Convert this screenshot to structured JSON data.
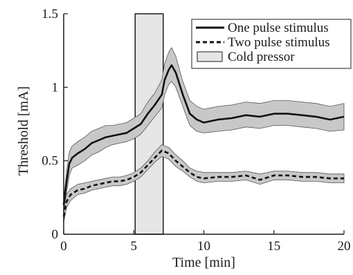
{
  "chart_data": {
    "type": "line",
    "title": "",
    "xlabel": "Time [min]",
    "ylabel": "Threshold [mA]",
    "xlim": [
      0,
      20
    ],
    "ylim": [
      0,
      1.5
    ],
    "x_ticks": [
      0,
      5,
      10,
      15,
      20
    ],
    "x_tick_labels": [
      "0",
      "5",
      "10",
      "15",
      "20"
    ],
    "y_ticks": [
      0,
      0.5,
      1,
      1.5
    ],
    "y_tick_labels": [
      "0",
      "0.5",
      "1",
      "1.5"
    ],
    "grid": false,
    "legend_position": "top-right",
    "shaded_region": {
      "label": "Cold pressor",
      "x_start": 5.1,
      "x_end": 7.1,
      "color": "#e6e6e6"
    },
    "legend": [
      {
        "label": "One pulse stimulus",
        "style": "solid"
      },
      {
        "label": "Two pulse stimulus",
        "style": "dashed"
      },
      {
        "label": "Cold pressor",
        "style": "patch"
      }
    ],
    "band_color": "#c8c8c8",
    "line_color": "#111111",
    "series": [
      {
        "name": "One pulse stimulus",
        "style": "solid",
        "x": [
          0,
          0.2,
          0.4,
          0.6,
          1.0,
          1.5,
          2.0,
          2.5,
          3.0,
          3.5,
          4.0,
          4.5,
          5.0,
          5.5,
          6.0,
          6.5,
          7.0,
          7.2,
          7.5,
          7.7,
          8.0,
          8.5,
          9.0,
          9.5,
          10.0,
          11.0,
          12.0,
          13.0,
          14.0,
          15.0,
          16.0,
          17.0,
          18.0,
          19.0,
          20.0
        ],
        "y": [
          0.2,
          0.35,
          0.48,
          0.52,
          0.55,
          0.58,
          0.62,
          0.64,
          0.66,
          0.67,
          0.68,
          0.69,
          0.72,
          0.75,
          0.82,
          0.88,
          0.95,
          1.05,
          1.12,
          1.15,
          1.1,
          0.95,
          0.82,
          0.78,
          0.76,
          0.78,
          0.79,
          0.81,
          0.8,
          0.82,
          0.82,
          0.81,
          0.8,
          0.78,
          0.8
        ],
        "lower": [
          0.16,
          0.28,
          0.4,
          0.45,
          0.47,
          0.5,
          0.54,
          0.56,
          0.59,
          0.61,
          0.62,
          0.63,
          0.65,
          0.68,
          0.74,
          0.8,
          0.86,
          0.95,
          1.02,
          1.04,
          1.0,
          0.87,
          0.74,
          0.7,
          0.69,
          0.7,
          0.71,
          0.73,
          0.72,
          0.74,
          0.74,
          0.73,
          0.72,
          0.7,
          0.71
        ],
        "upper": [
          0.24,
          0.42,
          0.56,
          0.6,
          0.63,
          0.66,
          0.7,
          0.72,
          0.74,
          0.74,
          0.75,
          0.76,
          0.79,
          0.82,
          0.9,
          0.96,
          1.05,
          1.16,
          1.24,
          1.27,
          1.21,
          1.04,
          0.91,
          0.87,
          0.85,
          0.87,
          0.88,
          0.9,
          0.89,
          0.91,
          0.91,
          0.9,
          0.89,
          0.87,
          0.89
        ]
      },
      {
        "name": "Two pulse stimulus",
        "style": "dashed",
        "x": [
          0,
          0.2,
          0.5,
          1.0,
          1.5,
          2.0,
          2.5,
          3.0,
          3.5,
          4.0,
          4.5,
          5.0,
          5.5,
          6.0,
          6.5,
          7.0,
          7.5,
          8.0,
          8.5,
          9.0,
          9.5,
          10.0,
          11.0,
          12.0,
          13.0,
          14.0,
          15.0,
          16.0,
          17.0,
          18.0,
          19.0,
          20.0
        ],
        "y": [
          0.12,
          0.22,
          0.27,
          0.3,
          0.31,
          0.33,
          0.34,
          0.35,
          0.36,
          0.36,
          0.37,
          0.39,
          0.42,
          0.47,
          0.52,
          0.57,
          0.55,
          0.5,
          0.46,
          0.42,
          0.39,
          0.38,
          0.39,
          0.39,
          0.4,
          0.37,
          0.4,
          0.4,
          0.39,
          0.39,
          0.38,
          0.38
        ],
        "lower": [
          0.08,
          0.18,
          0.23,
          0.27,
          0.28,
          0.3,
          0.31,
          0.32,
          0.33,
          0.33,
          0.34,
          0.36,
          0.39,
          0.44,
          0.49,
          0.53,
          0.51,
          0.46,
          0.43,
          0.39,
          0.36,
          0.35,
          0.36,
          0.36,
          0.37,
          0.34,
          0.37,
          0.37,
          0.36,
          0.36,
          0.35,
          0.35
        ],
        "upper": [
          0.16,
          0.27,
          0.31,
          0.34,
          0.35,
          0.36,
          0.37,
          0.38,
          0.39,
          0.39,
          0.4,
          0.42,
          0.45,
          0.5,
          0.56,
          0.61,
          0.59,
          0.54,
          0.5,
          0.45,
          0.43,
          0.42,
          0.42,
          0.42,
          0.43,
          0.41,
          0.43,
          0.43,
          0.42,
          0.42,
          0.41,
          0.41
        ]
      }
    ]
  }
}
